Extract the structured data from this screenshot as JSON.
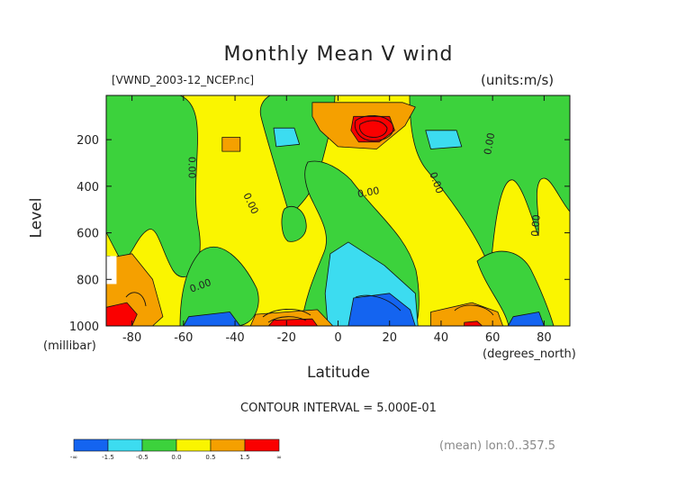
{
  "chart_data": {
    "type": "heatmap",
    "subtype": "filled-contour",
    "title": "Monthly Mean V wind",
    "file_label": "[VWND_2003-12_NCEP.nc]",
    "units_label": "(units:m/s)",
    "xlabel": "Latitude",
    "xlabel_unit": "(degrees_north)",
    "ylabel": "Level",
    "ylabel_unit": "(millibar)",
    "xlim": [
      -90,
      90
    ],
    "ylim": [
      1000,
      10
    ],
    "x_ticks": [
      -80,
      -60,
      -40,
      -20,
      0,
      20,
      40,
      60,
      80
    ],
    "x_tick_labels": [
      "-80",
      "-60",
      "-40",
      "-20",
      "0",
      "20",
      "40",
      "60",
      "80"
    ],
    "y_ticks": [
      200,
      400,
      600,
      800,
      1000
    ],
    "y_tick_labels": [
      "200",
      "400",
      "600",
      "800",
      "1000"
    ],
    "contour_interval": "CONTOUR INTERVAL = 5.000E-01",
    "contour_labels": [
      "0.00",
      "0.00",
      "0.00",
      "0.00",
      "0.00",
      "0.00",
      "0.00"
    ],
    "footer_note": "(mean) lon:0..357.5",
    "colorbar": {
      "labels": [
        "-∞",
        "-1.5",
        "-0.5",
        "0.0",
        "0.5",
        "1.5",
        "∞"
      ],
      "colors": [
        "#1464f0",
        "#3cdcf0",
        "#3cd23c",
        "#faf500",
        "#f5a000",
        "#fa0000"
      ]
    },
    "regions": [
      {
        "band": "positive-0.5-1.5",
        "color": "#f5a000",
        "polygon": [
          [
            -10,
            40
          ],
          [
            25,
            40
          ],
          [
            30,
            60
          ],
          [
            26,
            140
          ],
          [
            15,
            240
          ],
          [
            0,
            230
          ],
          [
            -7,
            160
          ],
          [
            -10,
            100
          ]
        ]
      },
      {
        "band": "positive-1.5+",
        "color": "#fa0000",
        "polygon": [
          [
            6,
            100
          ],
          [
            20,
            100
          ],
          [
            22,
            160
          ],
          [
            16,
            210
          ],
          [
            8,
            210
          ],
          [
            5,
            160
          ]
        ]
      },
      {
        "band": "negative-0.5-1.5",
        "color": "#3cdcf0",
        "polygon": [
          [
            -25,
            150
          ],
          [
            -17,
            150
          ],
          [
            -15,
            220
          ],
          [
            -24,
            230
          ]
        ]
      },
      {
        "band": "negative-0.5-1.5",
        "color": "#3cdcf0",
        "polygon": [
          [
            34,
            160
          ],
          [
            46,
            160
          ],
          [
            48,
            230
          ],
          [
            36,
            240
          ]
        ]
      },
      {
        "band": "positive-0.5-1.5",
        "color": "#f5a000",
        "polygon": [
          [
            -45,
            190
          ],
          [
            -38,
            190
          ],
          [
            -38,
            250
          ],
          [
            -45,
            250
          ]
        ]
      },
      {
        "band": "negative-0.5-1.5",
        "color": "#3cdcf0",
        "polygon": [
          [
            -3,
            690
          ],
          [
            4,
            640
          ],
          [
            18,
            740
          ],
          [
            30,
            860
          ],
          [
            31,
            1000
          ],
          [
            -4,
            1000
          ],
          [
            -5,
            860
          ]
        ]
      },
      {
        "band": "negative-1.5-",
        "color": "#1464f0",
        "polygon": [
          [
            6,
            880
          ],
          [
            20,
            860
          ],
          [
            28,
            930
          ],
          [
            30,
            1000
          ],
          [
            4,
            1000
          ]
        ]
      },
      {
        "band": "negative-1.5-",
        "color": "#1464f0",
        "polygon": [
          [
            -58,
            960
          ],
          [
            -42,
            940
          ],
          [
            -38,
            1000
          ],
          [
            -60,
            1000
          ]
        ]
      },
      {
        "band": "negative-1.5-",
        "color": "#1464f0",
        "polygon": [
          [
            68,
            960
          ],
          [
            78,
            940
          ],
          [
            80,
            1000
          ],
          [
            66,
            1000
          ]
        ]
      },
      {
        "band": "positive-0.5-1.5",
        "color": "#f5a000",
        "polygon": [
          [
            -32,
            950
          ],
          [
            -8,
            930
          ],
          [
            -2,
            1000
          ],
          [
            -34,
            1000
          ]
        ]
      },
      {
        "band": "positive-1.5+",
        "color": "#fa0000",
        "polygon": [
          [
            -25,
            975
          ],
          [
            -10,
            970
          ],
          [
            -8,
            1000
          ],
          [
            -27,
            1000
          ]
        ]
      },
      {
        "band": "positive-0.5-1.5",
        "color": "#f5a000",
        "polygon": [
          [
            36,
            940
          ],
          [
            52,
            900
          ],
          [
            62,
            940
          ],
          [
            64,
            1000
          ],
          [
            36,
            1000
          ]
        ]
      },
      {
        "band": "positive-1.5+",
        "color": "#fa0000",
        "polygon": [
          [
            49,
            985
          ],
          [
            54,
            980
          ],
          [
            56,
            1000
          ],
          [
            49,
            1000
          ]
        ]
      },
      {
        "band": "positive-0.5-1.5",
        "color": "#f5a000",
        "polygon": [
          [
            -90,
            710
          ],
          [
            -80,
            690
          ],
          [
            -72,
            800
          ],
          [
            -68,
            960
          ],
          [
            -72,
            1000
          ],
          [
            -90,
            1000
          ]
        ]
      },
      {
        "band": "positive-1.5+",
        "color": "#fa0000",
        "polygon": [
          [
            -90,
            920
          ],
          [
            -82,
            900
          ],
          [
            -78,
            950
          ],
          [
            -80,
            1000
          ],
          [
            -90,
            1000
          ]
        ]
      }
    ]
  }
}
